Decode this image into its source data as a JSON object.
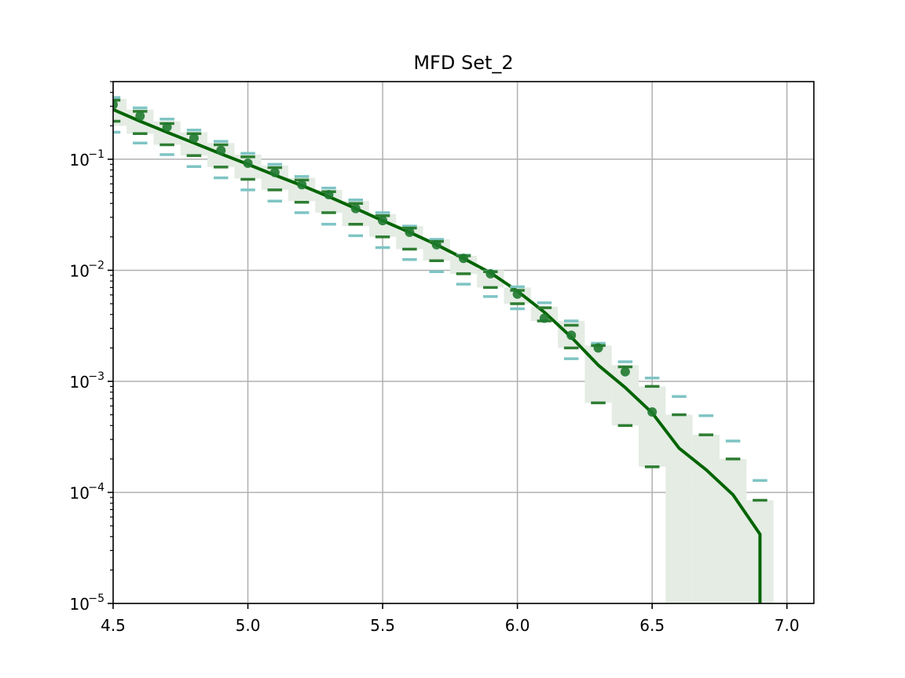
{
  "chart_data": {
    "type": "line",
    "title": "MFD Set_2",
    "xlabel": "",
    "ylabel": "",
    "xlim": [
      4.5,
      7.1
    ],
    "ylim": [
      1e-05,
      0.5
    ],
    "yscale": "log",
    "grid": true,
    "x_ticks": [
      {
        "value": 4.5,
        "label": "4.5"
      },
      {
        "value": 5.0,
        "label": "5.0"
      },
      {
        "value": 5.5,
        "label": "5.5"
      },
      {
        "value": 6.0,
        "label": "6.0"
      },
      {
        "value": 6.5,
        "label": "6.5"
      },
      {
        "value": 7.0,
        "label": "7.0"
      }
    ],
    "y_ticks": [
      {
        "value": 1e-05,
        "base": "10",
        "exp": "−5"
      },
      {
        "value": 0.0001,
        "base": "10",
        "exp": "−4"
      },
      {
        "value": 0.001,
        "base": "10",
        "exp": "−3"
      },
      {
        "value": 0.01,
        "base": "10",
        "exp": "−2"
      },
      {
        "value": 0.1,
        "base": "10",
        "exp": "−1"
      }
    ],
    "colors": {
      "model_line": "#006400",
      "points": "#1e7a2e",
      "inner_bounds": "#2e7d32",
      "outer_bounds": "#7fc4c4",
      "band": "#e4ece4",
      "grid": "#b0b0b0"
    },
    "model_line": {
      "x": [
        4.5,
        4.6,
        4.7,
        4.8,
        4.9,
        5.0,
        5.1,
        5.2,
        5.3,
        5.4,
        5.5,
        5.6,
        5.7,
        5.8,
        5.9,
        6.0,
        6.1,
        6.2,
        6.3,
        6.4,
        6.5,
        6.6,
        6.7,
        6.8,
        6.9,
        6.9
      ],
      "y": [
        0.28,
        0.22,
        0.175,
        0.14,
        0.112,
        0.09,
        0.072,
        0.058,
        0.046,
        0.036,
        0.028,
        0.022,
        0.017,
        0.0128,
        0.0095,
        0.0065,
        0.0042,
        0.0025,
        0.0014,
        0.00088,
        0.00052,
        0.00025,
        0.00016,
        9.5e-05,
        4.2e-05,
        1e-05
      ]
    },
    "points": {
      "x": [
        4.5,
        4.6,
        4.7,
        4.8,
        4.9,
        5.0,
        5.1,
        5.2,
        5.3,
        5.4,
        5.5,
        5.6,
        5.7,
        5.8,
        5.9,
        6.0,
        6.1,
        6.2,
        6.3,
        6.4,
        6.5
      ],
      "y": [
        0.31,
        0.245,
        0.195,
        0.155,
        0.12,
        0.092,
        0.076,
        0.059,
        0.048,
        0.036,
        0.028,
        0.022,
        0.017,
        0.0128,
        0.0093,
        0.0061,
        0.0037,
        0.0026,
        0.002,
        0.00122,
        0.00053
      ]
    },
    "band": {
      "x": [
        4.5,
        4.6,
        4.7,
        4.8,
        4.9,
        5.0,
        5.1,
        5.2,
        5.3,
        5.4,
        5.5,
        5.6,
        5.7,
        5.8,
        5.9,
        6.0,
        6.1,
        6.2,
        6.3,
        6.4,
        6.5,
        6.6,
        6.7,
        6.8,
        6.9
      ],
      "low": [
        0.2,
        0.17,
        0.135,
        0.108,
        0.085,
        0.067,
        0.053,
        0.042,
        0.033,
        0.025,
        0.02,
        0.0155,
        0.0122,
        0.0093,
        0.007,
        0.005,
        0.0035,
        0.002,
        0.00064,
        0.0004,
        0.00017,
        1e-05,
        1e-05,
        1e-05,
        1e-05
      ],
      "high": [
        0.35,
        0.28,
        0.22,
        0.175,
        0.14,
        0.11,
        0.088,
        0.068,
        0.053,
        0.042,
        0.032,
        0.025,
        0.019,
        0.0135,
        0.01,
        0.007,
        0.0047,
        0.0035,
        0.0021,
        0.0014,
        0.0009,
        0.0005,
        0.00033,
        0.0002,
        8.5e-05
      ]
    },
    "inner_bounds": {
      "x": [
        4.5,
        4.6,
        4.7,
        4.8,
        4.9,
        5.0,
        5.1,
        5.2,
        5.3,
        5.4,
        5.5,
        5.6,
        5.7,
        5.8,
        5.9,
        6.0,
        6.1,
        6.2,
        6.3,
        6.4,
        6.5,
        6.6,
        6.7,
        6.8,
        6.9
      ],
      "low": [
        0.22,
        0.17,
        0.135,
        0.108,
        0.085,
        0.066,
        0.053,
        0.041,
        0.033,
        0.026,
        0.02,
        0.0155,
        0.0122,
        0.0093,
        0.007,
        0.005,
        0.0035,
        0.002,
        0.00064,
        0.0004,
        0.00017,
        null,
        null,
        null,
        null
      ],
      "high": [
        0.34,
        0.27,
        0.21,
        0.17,
        0.135,
        0.105,
        0.084,
        0.065,
        0.051,
        0.04,
        0.031,
        0.024,
        0.0182,
        0.0135,
        0.0097,
        0.0066,
        0.0046,
        0.0032,
        0.0021,
        0.00135,
        0.0009,
        0.0005,
        0.00033,
        0.0002,
        8.5e-05
      ]
    },
    "outer_bounds": {
      "x": [
        4.5,
        4.6,
        4.7,
        4.8,
        4.9,
        5.0,
        5.1,
        5.2,
        5.3,
        5.4,
        5.5,
        5.6,
        5.7,
        5.8,
        5.9,
        6.0,
        6.1,
        6.2,
        6.3,
        6.4,
        6.5,
        6.6,
        6.7,
        6.8,
        6.9
      ],
      "low": [
        0.175,
        0.14,
        0.11,
        0.086,
        0.068,
        0.053,
        0.042,
        0.033,
        0.026,
        0.0205,
        0.016,
        0.0125,
        0.0097,
        0.0075,
        0.0058,
        0.0045,
        null,
        0.0016,
        null,
        null,
        null,
        null,
        null,
        null,
        null
      ],
      "high": [
        0.36,
        0.29,
        0.23,
        0.183,
        0.145,
        0.113,
        0.09,
        0.07,
        0.055,
        0.043,
        0.033,
        0.025,
        0.019,
        0.0137,
        0.0098,
        0.0071,
        0.0051,
        0.0035,
        0.0022,
        0.0015,
        0.00107,
        0.00073,
        0.00049,
        0.00029,
        0.000128
      ]
    }
  }
}
